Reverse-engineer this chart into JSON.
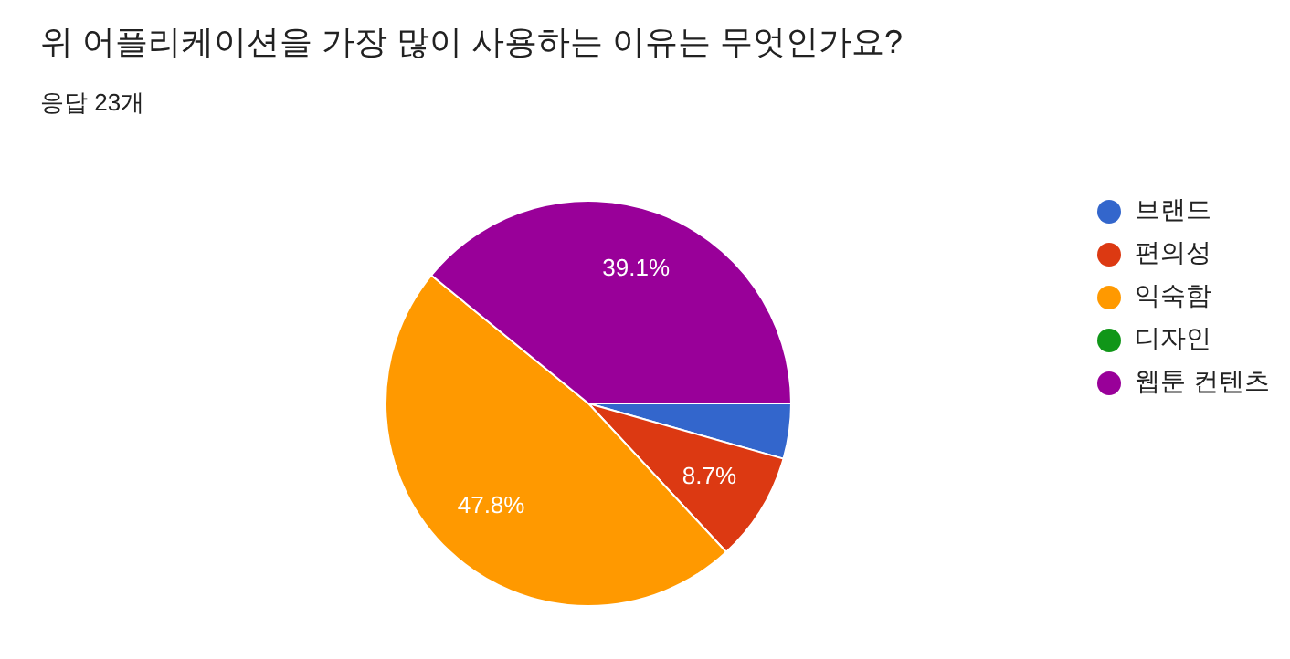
{
  "chart_data": {
    "type": "pie",
    "title": "위 어플리케이션을 가장 많이 사용하는 이유는 무엇인가요?",
    "subtitle": "응답 23개",
    "categories": [
      "브랜드",
      "편의성",
      "익숙함",
      "디자인",
      "웹툰 컨텐츠"
    ],
    "values": [
      4.4,
      8.7,
      47.8,
      0,
      39.1
    ],
    "colors": [
      "#3366cc",
      "#dc3912",
      "#ff9900",
      "#109618",
      "#990099"
    ],
    "value_labels": [
      null,
      "8.7%",
      "47.8%",
      null,
      "39.1%"
    ],
    "legend": "right"
  }
}
